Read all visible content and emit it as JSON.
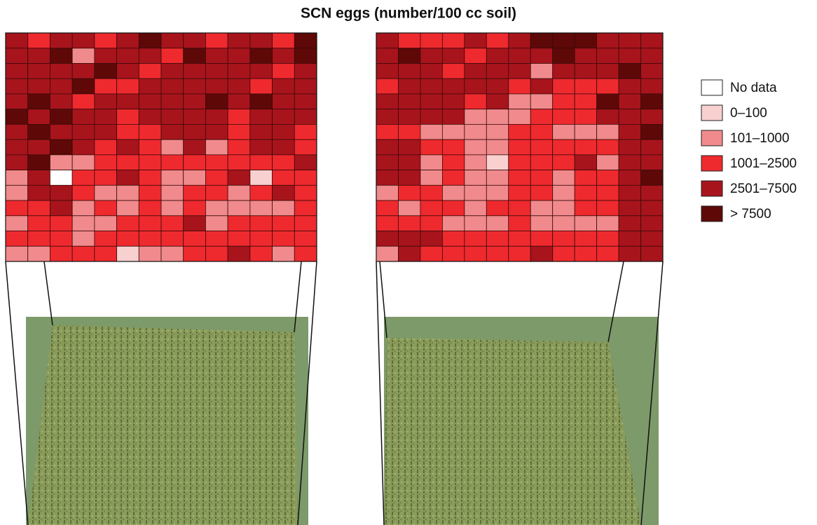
{
  "title": "SCN eggs (number/100 cc soil)",
  "legend": [
    {
      "label": "No data",
      "color": "#ffffff"
    },
    {
      "label": "0–100",
      "color": "#f8d0d0"
    },
    {
      "label": "101–1000",
      "color": "#f08a8c"
    },
    {
      "label": "1001–2500",
      "color": "#ee2a2e"
    },
    {
      "label": "2501–7500",
      "color": "#a8141c"
    },
    {
      "label": "> 7500",
      "color": "#5e0808"
    }
  ],
  "grids": [
    {
      "cells": [
        [
          4,
          3,
          4,
          4,
          3,
          4,
          5,
          4,
          4,
          3,
          4,
          4,
          3,
          5
        ],
        [
          4,
          4,
          5,
          2,
          4,
          4,
          4,
          3,
          5,
          4,
          4,
          5,
          4,
          5
        ],
        [
          4,
          4,
          4,
          4,
          5,
          4,
          3,
          4,
          4,
          4,
          4,
          4,
          3,
          4
        ],
        [
          4,
          4,
          4,
          5,
          3,
          3,
          4,
          4,
          4,
          4,
          4,
          3,
          4,
          4
        ],
        [
          4,
          5,
          4,
          3,
          4,
          4,
          4,
          4,
          4,
          5,
          4,
          5,
          4,
          4
        ],
        [
          5,
          4,
          5,
          4,
          4,
          3,
          4,
          4,
          4,
          4,
          3,
          4,
          4,
          4
        ],
        [
          4,
          5,
          4,
          4,
          4,
          3,
          3,
          4,
          4,
          4,
          3,
          4,
          4,
          3
        ],
        [
          4,
          4,
          5,
          4,
          3,
          4,
          3,
          2,
          4,
          2,
          3,
          4,
          4,
          3
        ],
        [
          4,
          5,
          2,
          2,
          3,
          3,
          3,
          3,
          3,
          3,
          3,
          3,
          3,
          4
        ],
        [
          2,
          4,
          0,
          3,
          3,
          4,
          3,
          2,
          2,
          3,
          4,
          1,
          3,
          3
        ],
        [
          2,
          4,
          4,
          3,
          2,
          2,
          3,
          2,
          3,
          3,
          2,
          3,
          4,
          3
        ],
        [
          3,
          3,
          4,
          2,
          3,
          2,
          3,
          2,
          3,
          2,
          2,
          2,
          2,
          3
        ],
        [
          2,
          3,
          3,
          2,
          2,
          3,
          3,
          3,
          4,
          2,
          3,
          3,
          3,
          3
        ],
        [
          3,
          3,
          3,
          2,
          3,
          3,
          3,
          3,
          3,
          3,
          3,
          3,
          3,
          3
        ],
        [
          2,
          2,
          3,
          3,
          3,
          1,
          2,
          2,
          3,
          3,
          4,
          3,
          2,
          3
        ]
      ]
    },
    {
      "cells": [
        [
          4,
          3,
          3,
          3,
          4,
          3,
          4,
          5,
          5,
          5,
          4,
          4,
          4
        ],
        [
          4,
          5,
          4,
          4,
          3,
          4,
          4,
          4,
          5,
          4,
          4,
          4,
          4
        ],
        [
          4,
          4,
          4,
          3,
          4,
          4,
          4,
          2,
          4,
          4,
          4,
          5,
          4
        ],
        [
          3,
          4,
          4,
          4,
          4,
          4,
          3,
          4,
          3,
          3,
          3,
          4,
          4
        ],
        [
          4,
          4,
          4,
          4,
          3,
          4,
          2,
          2,
          3,
          3,
          5,
          4,
          5
        ],
        [
          4,
          4,
          4,
          4,
          2,
          2,
          2,
          3,
          3,
          3,
          4,
          4,
          4
        ],
        [
          3,
          3,
          2,
          2,
          2,
          2,
          3,
          3,
          2,
          2,
          2,
          4,
          5
        ],
        [
          4,
          4,
          3,
          3,
          2,
          2,
          3,
          3,
          3,
          3,
          3,
          4,
          4
        ],
        [
          4,
          4,
          2,
          3,
          2,
          1,
          3,
          3,
          3,
          4,
          2,
          4,
          4
        ],
        [
          4,
          4,
          2,
          3,
          2,
          2,
          3,
          3,
          2,
          3,
          3,
          4,
          5
        ],
        [
          2,
          3,
          3,
          2,
          2,
          2,
          3,
          3,
          2,
          3,
          3,
          4,
          4
        ],
        [
          3,
          2,
          3,
          3,
          2,
          3,
          3,
          2,
          2,
          3,
          3,
          4,
          4
        ],
        [
          3,
          3,
          3,
          2,
          2,
          2,
          3,
          2,
          2,
          2,
          2,
          4,
          4
        ],
        [
          4,
          4,
          4,
          3,
          3,
          3,
          3,
          3,
          3,
          3,
          3,
          4,
          4
        ],
        [
          2,
          4,
          3,
          3,
          3,
          3,
          3,
          4,
          3,
          3,
          3,
          4,
          4
        ]
      ]
    }
  ]
}
